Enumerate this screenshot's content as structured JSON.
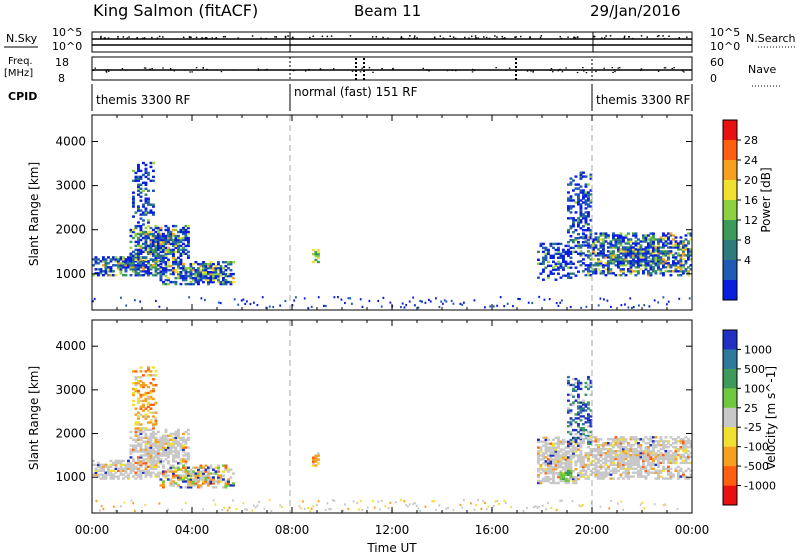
{
  "header": {
    "station": "King Salmon (fitACF)",
    "beam": "Beam 11",
    "date": "29/Jan/2016"
  },
  "status_panels": {
    "nsky_label": "N.Sky",
    "nsearch_label": "N.Search",
    "freq_label_1": "Freq.",
    "freq_label_2": "[MHz]",
    "nave_label": "Nave",
    "cpid_label": "CPID",
    "nsky_ticks": [
      "10^5",
      "10^0"
    ],
    "nsearch_ticks": [
      "10^5",
      "10^0"
    ],
    "freq_ticks": [
      "18",
      "8"
    ],
    "nave_ticks": [
      "60",
      "0"
    ],
    "cpid_segments": [
      {
        "start": 0,
        "end": 8,
        "label": "themis 3300 RF"
      },
      {
        "start": 8,
        "end": 20,
        "label": "normal (fast) 151 RF"
      },
      {
        "start": 20,
        "end": 24,
        "label": "themis 3300 RF"
      }
    ]
  },
  "chart_data": [
    {
      "type": "heatmap",
      "name": "power",
      "ylabel": "Slant Range [km]",
      "xlim": [
        0,
        24
      ],
      "ylim": [
        180,
        4600
      ],
      "yticks": [
        1000,
        2000,
        3000,
        4000
      ],
      "vertical_dashed_lines_hours": [
        8,
        20
      ],
      "colorbar": {
        "label": "Power [dB]",
        "ticks": [
          "28",
          "24",
          "20",
          "16",
          "12",
          "8",
          "4"
        ],
        "colors": [
          "#0a1ee0",
          "#1f5ab4",
          "#2f7a7a",
          "#3c9a5a",
          "#8ed040",
          "#f0e030",
          "#f5a020",
          "#ff6010",
          "#e81010"
        ]
      },
      "regions": [
        {
          "t0": 0.0,
          "t1": 2.8,
          "r0": 950,
          "r1": 1400,
          "level": "mixed"
        },
        {
          "t0": 1.5,
          "t1": 3.9,
          "r0": 1300,
          "r1": 2100,
          "level": "mixed"
        },
        {
          "t0": 1.6,
          "t1": 2.5,
          "r0": 2100,
          "r1": 3500,
          "level": "low"
        },
        {
          "t0": 2.7,
          "t1": 5.6,
          "r0": 750,
          "r1": 1250,
          "level": "mixed"
        },
        {
          "t0": 8.8,
          "t1": 9.1,
          "r0": 1250,
          "r1": 1550,
          "level": "mid"
        },
        {
          "t0": 17.8,
          "t1": 19.5,
          "r0": 850,
          "r1": 1700,
          "level": "low"
        },
        {
          "t0": 19.0,
          "t1": 20.0,
          "r0": 1700,
          "r1": 3300,
          "level": "low"
        },
        {
          "t0": 19.5,
          "t1": 24.0,
          "r0": 950,
          "r1": 1900,
          "level": "mixed"
        }
      ]
    },
    {
      "type": "heatmap",
      "name": "velocity",
      "ylabel": "Slant Range [km]",
      "xlabel": "Time UT",
      "xlim": [
        0,
        24
      ],
      "ylim": [
        180,
        4600
      ],
      "yticks": [
        1000,
        2000,
        3000,
        4000
      ],
      "xticks": [
        "00:00",
        "04:00",
        "08:00",
        "12:00",
        "16:00",
        "20:00",
        "00:00"
      ],
      "vertical_dashed_lines_hours": [
        8,
        20
      ],
      "colorbar": {
        "label": "Velocity [m s^-1]",
        "ticks": [
          "1000",
          "500",
          "100",
          "25",
          "-25",
          "-100",
          "-500",
          "-1000"
        ],
        "colors": [
          "#2030c0",
          "#2f7a9a",
          "#3c9a5a",
          "#70c840",
          "#c8c8c8",
          "#f0e030",
          "#f5a020",
          "#ff6010",
          "#e81010"
        ]
      },
      "regions": [
        {
          "t0": 0.0,
          "t1": 2.8,
          "r0": 950,
          "r1": 1400,
          "level": "grey"
        },
        {
          "t0": 1.5,
          "t1": 3.9,
          "r0": 1300,
          "r1": 2100,
          "level": "grey"
        },
        {
          "t0": 1.6,
          "t1": 2.6,
          "r0": 2100,
          "r1": 3500,
          "level": "orange"
        },
        {
          "t0": 2.7,
          "t1": 5.6,
          "r0": 750,
          "r1": 1250,
          "level": "mixed"
        },
        {
          "t0": 8.8,
          "t1": 9.1,
          "r0": 1250,
          "r1": 1550,
          "level": "orange"
        },
        {
          "t0": 17.8,
          "t1": 19.5,
          "r0": 850,
          "r1": 1900,
          "level": "grey"
        },
        {
          "t0": 18.7,
          "t1": 19.2,
          "r0": 900,
          "r1": 1150,
          "level": "green"
        },
        {
          "t0": 19.0,
          "t1": 20.0,
          "r0": 1700,
          "r1": 3300,
          "level": "blue"
        },
        {
          "t0": 19.5,
          "t1": 24.0,
          "r0": 950,
          "r1": 1900,
          "level": "grey"
        }
      ]
    }
  ]
}
